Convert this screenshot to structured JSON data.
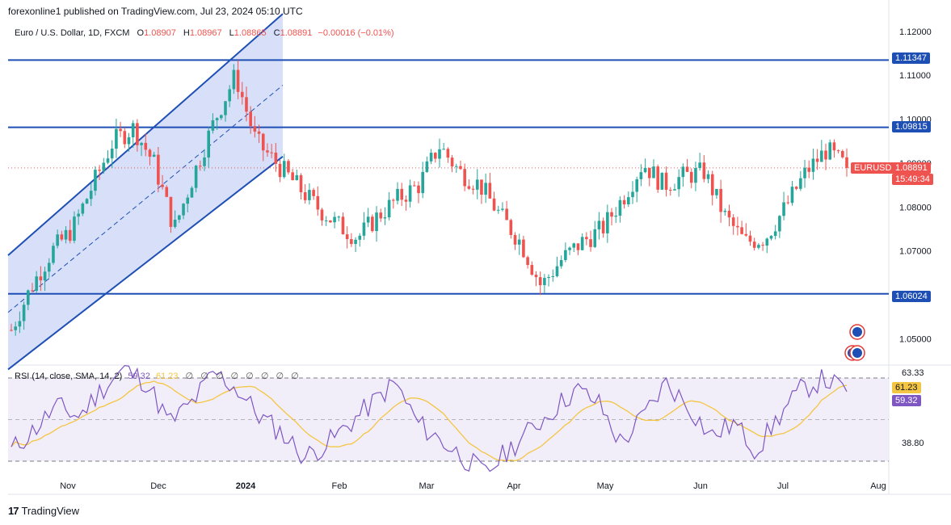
{
  "header": {
    "text": "forexonline1 published on TradingView.com, Jul 23, 2024 05:10 UTC"
  },
  "legend": {
    "symbol": "Euro / U.S. Dollar, 1D, FXCM",
    "open_label": "O",
    "open": "1.08907",
    "high_label": "H",
    "high": "1.08967",
    "low_label": "L",
    "low": "1.08865",
    "close_label": "C",
    "close": "1.08891",
    "change": "−0.00016 (−0.01%)"
  },
  "price_axis": {
    "ticks": [
      "1.12000",
      "1.11000",
      "1.10000",
      "1.09000",
      "1.08000",
      "1.07000",
      "1.05000"
    ],
    "level_labels": [
      "1.11347",
      "1.09815",
      "1.06024"
    ],
    "last_symbol": "EURUSD",
    "last_price": "1.08891",
    "countdown": "15:49:34"
  },
  "rsi_legend": {
    "label": "RSI (14, close, SMA, 14, 2)",
    "rsi_value": "59.32",
    "sma_value": "61.23",
    "empty_values": [
      "∅",
      "∅",
      "∅",
      "∅",
      "∅",
      "∅",
      "∅",
      "∅"
    ]
  },
  "rsi_axis": {
    "upper": "63.33",
    "lower": "38.80",
    "sma_label": "61.23",
    "rsi_label": "59.32"
  },
  "time_axis": [
    "Nov",
    "Dec",
    "2024",
    "Feb",
    "Mar",
    "Apr",
    "May",
    "Jun",
    "Jul",
    "Aug"
  ],
  "footer": {
    "logo": "17",
    "brand": "TradingView"
  },
  "colors": {
    "up": "#26a69a",
    "down": "#ef5350",
    "level_line": "#1e4fb5",
    "channel_fill": "#c9d4f7",
    "rsi_line": "#7e57c2",
    "rsi_sma": "#f4c542",
    "rsi_band": "#ede7f6"
  },
  "chart_data": {
    "type": "candlestick",
    "symbol": "EURUSD",
    "timeframe": "1D",
    "x": [
      "Oct-2023",
      "Nov",
      "Dec",
      "2024",
      "Feb",
      "Mar",
      "Apr",
      "May",
      "Jun",
      "Jul",
      "Jul-22"
    ],
    "close_path": [
      1.052,
      1.062,
      1.07,
      1.075,
      1.085,
      1.095,
      1.098,
      1.09,
      1.075,
      1.088,
      1.1,
      1.11,
      1.095,
      1.09,
      1.085,
      1.08,
      1.076,
      1.073,
      1.078,
      1.082,
      1.085,
      1.094,
      1.088,
      1.085,
      1.078,
      1.072,
      1.062,
      1.068,
      1.072,
      1.075,
      1.082,
      1.09,
      1.085,
      1.087,
      1.088,
      1.078,
      1.072,
      1.073,
      1.08,
      1.088,
      1.093,
      1.089
    ],
    "horizontal_levels": [
      1.11347,
      1.09815,
      1.06024
    ],
    "last_price": 1.08891,
    "price_range": [
      1.044,
      1.122
    ],
    "rsi": {
      "period": 14,
      "values": [
        42,
        48,
        55,
        52,
        60,
        66,
        62,
        50,
        56,
        65,
        60,
        52,
        47,
        40,
        44,
        50,
        56,
        62,
        50,
        45,
        40,
        35,
        42,
        48,
        54,
        60,
        56,
        44,
        52,
        62,
        55,
        46,
        50,
        42,
        52,
        60,
        63,
        59.32
      ],
      "sma_last": 61.23,
      "rsi_last": 59.32,
      "levels": [
        63.33,
        38.8
      ]
    }
  }
}
